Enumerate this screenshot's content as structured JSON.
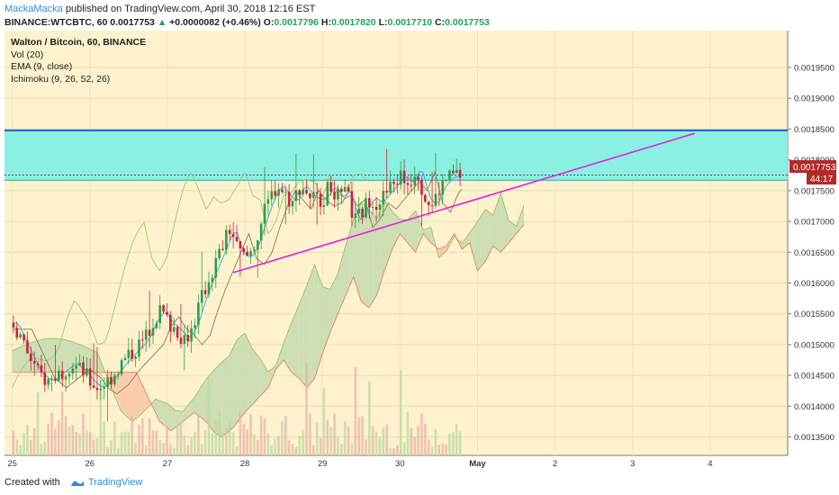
{
  "header": {
    "author": "MackaMacka",
    "published_text": "published on TradingView.com, April 30, 2018 12:16 EST",
    "symbol_line": "BINANCE:WTCBTC, 60",
    "last_price": "0.0017753",
    "change": "+0.0000082 (+0.46%)",
    "open_label": "O:",
    "open": "0.0017796",
    "high_label": "H:",
    "high": "0.0017820",
    "low_label": "L:",
    "low": "0.0017710",
    "close_label": "C:",
    "close": "0.0017753"
  },
  "legend": {
    "title": "Walton / Bitcoin, 60, BINANCE",
    "indicators": [
      "Vol (20)",
      "EMA (9, close)",
      "Ichimoku (9, 26, 52, 26)"
    ]
  },
  "footer": {
    "created_with": "Created with",
    "brand": "TradingView"
  },
  "price_badge": {
    "value": "0.0017753",
    "timer": "44:17"
  },
  "colors": {
    "background": "#fdf2cd",
    "zone_fill": "#7df0e3",
    "zone_border": "#1e5fd0",
    "trendline": "#e020e0",
    "candle_up": "#2f9e47",
    "candle_down": "#c8233e",
    "cloud_bull": "#c9dcb0",
    "cloud_bear": "#f8c8aa",
    "ema": "#5aa9e6",
    "badge": "#b22a2a"
  },
  "chart_data": {
    "type": "candlestick",
    "title": "Walton / Bitcoin, 60, BINANCE",
    "x_axis": {
      "labels": [
        "25",
        "26",
        "27",
        "28",
        "29",
        "30",
        "May",
        "2",
        "3",
        "4"
      ],
      "positions": [
        0,
        1,
        2,
        3,
        4,
        5,
        6,
        7,
        8,
        9
      ],
      "range": [
        -0.1,
        10
      ]
    },
    "y_axis": {
      "range": [
        0.00132,
        0.00201
      ],
      "ticks": [
        "0.0013500",
        "0.0014000",
        "0.0014500",
        "0.0015000",
        "0.0015500",
        "0.0016000",
        "0.0016500",
        "0.0017000",
        "0.0017500",
        "0.0018000",
        "0.0018500",
        "0.0019000",
        "0.0019500"
      ],
      "scale": "linear"
    },
    "resistance_zone": {
      "y_top": 0.001848,
      "y_bottom": 0.001767,
      "x_start": -0.1,
      "x_end": 10
    },
    "trendline": {
      "x1": 2.85,
      "y1": 0.001617,
      "x2": 8.8,
      "y2": 0.001843
    },
    "price_close_points": [
      [
        0.0,
        0.001535
      ],
      [
        0.15,
        0.001495
      ],
      [
        0.3,
        0.001455
      ],
      [
        0.45,
        0.00144
      ],
      [
        0.6,
        0.001455
      ],
      [
        0.75,
        0.00147
      ],
      [
        0.9,
        0.001455
      ],
      [
        1.0,
        0.001438
      ],
      [
        1.1,
        0.00143
      ],
      [
        1.25,
        0.001445
      ],
      [
        1.4,
        0.00147
      ],
      [
        1.55,
        0.00149
      ],
      [
        1.7,
        0.00151
      ],
      [
        1.8,
        0.00154
      ],
      [
        1.9,
        0.001555
      ],
      [
        2.0,
        0.001535
      ],
      [
        2.1,
        0.001525
      ],
      [
        2.2,
        0.00151
      ],
      [
        2.3,
        0.001525
      ],
      [
        2.4,
        0.001565
      ],
      [
        2.5,
        0.0016
      ],
      [
        2.6,
        0.00163
      ],
      [
        2.7,
        0.00166
      ],
      [
        2.8,
        0.00169
      ],
      [
        2.9,
        0.00165
      ],
      [
        3.0,
        0.00164
      ],
      [
        3.1,
        0.00166
      ],
      [
        3.2,
        0.0017
      ],
      [
        3.3,
        0.001735
      ],
      [
        3.4,
        0.00176
      ],
      [
        3.5,
        0.001745
      ],
      [
        3.6,
        0.00173
      ],
      [
        3.7,
        0.00176
      ],
      [
        3.8,
        0.001745
      ],
      [
        3.9,
        0.001735
      ],
      [
        4.0,
        0.00174
      ],
      [
        4.1,
        0.00176
      ],
      [
        4.2,
        0.001735
      ],
      [
        4.3,
        0.001745
      ],
      [
        4.4,
        0.0017
      ],
      [
        4.5,
        0.001715
      ],
      [
        4.6,
        0.00174
      ],
      [
        4.7,
        0.00173
      ],
      [
        4.8,
        0.001745
      ],
      [
        4.9,
        0.00176
      ],
      [
        5.0,
        0.001775
      ],
      [
        5.1,
        0.00176
      ],
      [
        5.2,
        0.00179
      ],
      [
        5.3,
        0.00174
      ],
      [
        5.4,
        0.001725
      ],
      [
        5.5,
        0.001755
      ],
      [
        5.6,
        0.00177
      ],
      [
        5.7,
        0.001775
      ],
      [
        5.8,
        0.001775
      ]
    ],
    "volume": {
      "range": [
        0,
        1
      ],
      "relative_values_note": "not printed"
    }
  }
}
